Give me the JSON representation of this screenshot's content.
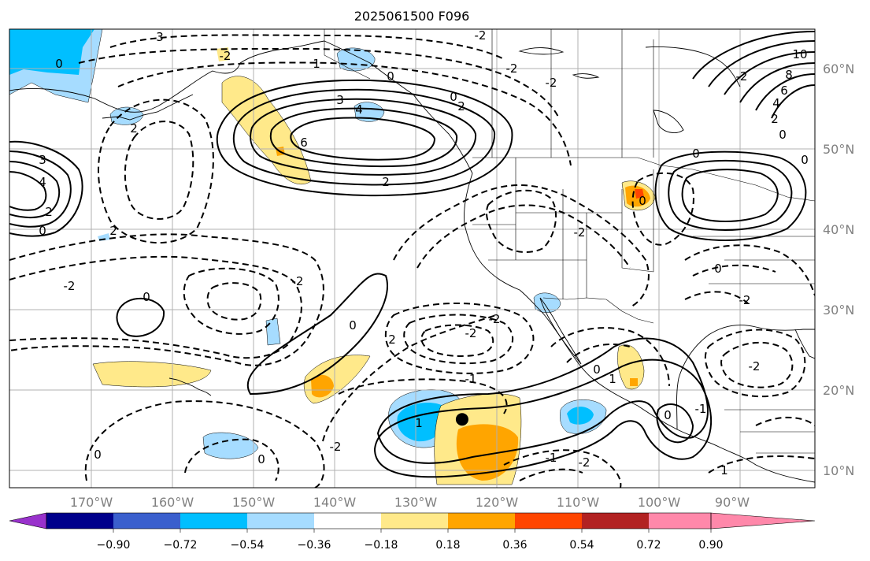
{
  "title": "2025061500 F096",
  "map": {
    "lon_range": [
      -180,
      -80
    ],
    "lat_range": [
      8,
      65
    ],
    "lon_labels": [
      "170°W",
      "160°W",
      "150°W",
      "140°W",
      "130°W",
      "120°W",
      "110°W",
      "100°W",
      "90°W"
    ],
    "lat_labels": [
      "60°N",
      "50°N",
      "40°N",
      "30°N",
      "20°N",
      "10°N"
    ],
    "grid": true,
    "marker": {
      "name": "point-marker",
      "lon": -123.8,
      "lat": 16.5
    },
    "contour_labels": [
      "3",
      "0",
      "1",
      "-2",
      "2",
      "-2",
      "3",
      "4",
      "0",
      "-2",
      "2",
      "6",
      "0",
      "-2",
      "-2",
      "2",
      "-2",
      "3",
      "4",
      "2",
      "0",
      "2",
      "0",
      "0",
      "-2",
      "-2",
      "2",
      "0",
      "0",
      "-2",
      "-2",
      "-1",
      "-1",
      "-2",
      "1",
      "0",
      "-2",
      "1",
      "0",
      "0",
      "2",
      "6",
      "8",
      "10",
      "-2",
      "4",
      "0",
      "0",
      "0",
      "-2",
      "1",
      "-1",
      "0"
    ],
    "shading": [
      {
        "level": "-0.54..-0.36",
        "color": "#00bfff"
      },
      {
        "level": "-0.36..-0.18",
        "color": "#a6dcff"
      },
      {
        "level": "0.18..0.36",
        "color": "#ffe98a"
      },
      {
        "level": "0.36..0.54",
        "color": "#ffa500"
      },
      {
        "level": "0.54..0.72",
        "color": "#ff4500"
      }
    ]
  },
  "colorbar": {
    "ticks": [
      "−0.90",
      "−0.72",
      "−0.54",
      "−0.36",
      "−0.18",
      "0.18",
      "0.36",
      "0.54",
      "0.72",
      "0.90"
    ],
    "colors": [
      "#9932cc",
      "#00008b",
      "#3a5fcd",
      "#00bfff",
      "#a6dcff",
      "#ffffff",
      "#ffe98a",
      "#ffa500",
      "#ff4500",
      "#b22222",
      "#ff88aa"
    ]
  }
}
